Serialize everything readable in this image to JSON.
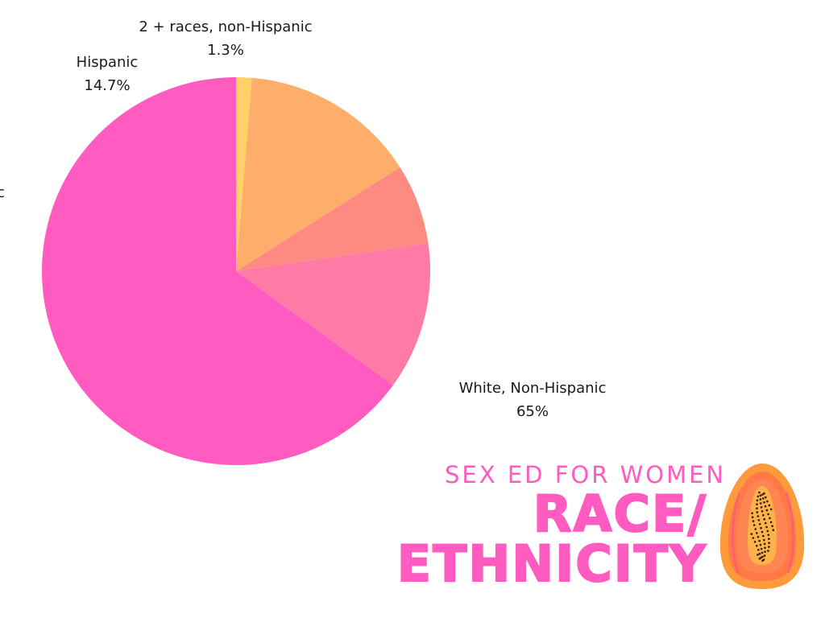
{
  "chart_data": {
    "type": "pie",
    "start_angle_deg": 90,
    "direction": "counterclockwise",
    "slices": [
      {
        "name": "White, Non-Hispanic",
        "value": 65,
        "label": "65%",
        "color": "#ff5bc0"
      },
      {
        "name": "",
        "value": 12.3,
        "label": "",
        "color": "#ff7aa6"
      },
      {
        "name": "",
        "value": 6.7,
        "label": "",
        "color": "#ff8a82"
      },
      {
        "name": "Hispanic",
        "value": 14.7,
        "label": "14.7%",
        "color": "#ffad6b"
      },
      {
        "name": "2 + races, non-Hispanic",
        "value": 1.3,
        "label": "1.3%",
        "color": "#ffd166"
      }
    ]
  },
  "branding": {
    "subtitle": "SEX ED FOR WOMEN",
    "title_line1": "RACE/",
    "title_line2": "ETHNICITY",
    "accent_color": "#ff5bc0",
    "logo_icon": "papaya-icon"
  }
}
